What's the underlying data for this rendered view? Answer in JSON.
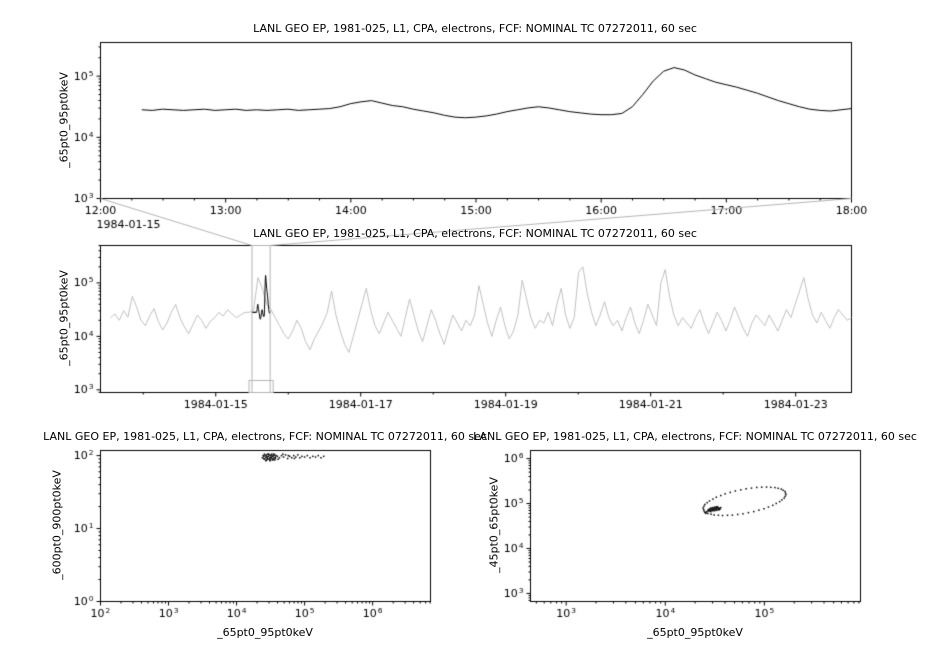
{
  "page": {
    "background": "#ffffff",
    "text_color": "#000000"
  },
  "chart_data": [
    {
      "id": "flux-timeseries-zoom",
      "type": "line",
      "title": "LANL GEO EP, 1981-025, L1, CPA, electrons, FCF: NOMINAL TC 07272011, 60 sec",
      "ylabel": "_65pt0_95pt0keV",
      "x_offset_label": "1984-01-15",
      "x_tick_values": [
        12,
        13,
        14,
        15,
        16,
        17,
        18
      ],
      "x_tick_labels": [
        "12:00",
        "13:00",
        "14:00",
        "15:00",
        "16:00",
        "17:00",
        "18:00"
      ],
      "x_minor_step": 0.25,
      "y_tick_exponents": [
        3,
        4,
        5
      ],
      "xlim": [
        12,
        18
      ],
      "ylim": [
        3.0,
        5.55
      ],
      "line_color": "#000000",
      "series": {
        "x_start": 12.33,
        "x_end": 18.0,
        "y_log": [
          4.45,
          4.44,
          4.46,
          4.45,
          4.44,
          4.45,
          4.46,
          4.44,
          4.45,
          4.46,
          4.44,
          4.45,
          4.44,
          4.45,
          4.46,
          4.44,
          4.45,
          4.46,
          4.47,
          4.5,
          4.55,
          4.58,
          4.6,
          4.56,
          4.52,
          4.5,
          4.46,
          4.43,
          4.4,
          4.36,
          4.33,
          4.32,
          4.33,
          4.35,
          4.38,
          4.42,
          4.45,
          4.48,
          4.5,
          4.48,
          4.45,
          4.42,
          4.4,
          4.38,
          4.37,
          4.37,
          4.39,
          4.5,
          4.7,
          4.92,
          5.08,
          5.14,
          5.1,
          5.02,
          4.96,
          4.9,
          4.86,
          4.82,
          4.77,
          4.72,
          4.66,
          4.6,
          4.55,
          4.5,
          4.46,
          4.44,
          4.43,
          4.45,
          4.47
        ]
      }
    },
    {
      "id": "flux-timeseries-context",
      "type": "line",
      "title": "LANL GEO EP, 1981-025, L1, CPA, electrons, FCF: NOMINAL TC 07272011, 60 sec",
      "ylabel": "_65pt0_95pt0keV",
      "x_tick_values": [
        15,
        17,
        19,
        21,
        23
      ],
      "x_tick_labels": [
        "1984-01-15",
        "1984-01-17",
        "1984-01-19",
        "1984-01-21",
        "1984-01-23"
      ],
      "x_minor_values": [
        14,
        16,
        18,
        20,
        22
      ],
      "y_tick_exponents": [
        3,
        4,
        5
      ],
      "xlim": [
        13.41,
        23.77
      ],
      "ylim": [
        2.95,
        5.7
      ],
      "line_color": "#c0c0c0",
      "highlight": {
        "x_range": [
          15.5,
          15.75
        ],
        "line_color": "#000000",
        "box_color": "#b4b4b4",
        "overlay_series_ref": 0
      },
      "series": {
        "x_start": 13.55,
        "x_end": 23.77,
        "y_log": [
          4.35,
          4.42,
          4.3,
          4.48,
          4.36,
          4.75,
          4.55,
          4.3,
          4.2,
          4.38,
          4.52,
          4.28,
          4.12,
          4.25,
          4.45,
          4.6,
          4.35,
          4.18,
          4.05,
          4.22,
          4.4,
          4.3,
          4.15,
          4.28,
          4.35,
          4.45,
          4.38,
          4.5,
          4.42,
          4.35,
          4.4,
          4.45,
          4.45,
          4.5,
          5.1,
          4.9,
          4.6,
          4.5,
          4.35,
          4.2,
          4.05,
          3.95,
          4.1,
          4.3,
          4.15,
          3.9,
          3.75,
          3.95,
          4.1,
          4.25,
          4.45,
          4.85,
          4.4,
          4.1,
          3.85,
          3.7,
          4.0,
          4.3,
          4.6,
          4.9,
          4.5,
          4.2,
          4.05,
          4.25,
          4.45,
          4.3,
          4.15,
          4.0,
          4.35,
          4.7,
          4.4,
          4.1,
          3.9,
          4.2,
          4.5,
          4.3,
          4.05,
          3.85,
          4.15,
          4.4,
          4.25,
          4.1,
          4.3,
          4.2,
          4.4,
          4.95,
          4.6,
          4.25,
          4.0,
          4.3,
          4.55,
          4.2,
          3.95,
          4.1,
          4.4,
          5.05,
          4.7,
          4.35,
          4.15,
          4.3,
          4.25,
          4.45,
          4.2,
          4.6,
          4.9,
          4.4,
          4.15,
          4.35,
          5.2,
          5.3,
          4.8,
          4.45,
          4.2,
          4.4,
          4.65,
          4.35,
          4.2,
          4.3,
          4.1,
          4.35,
          4.55,
          4.25,
          4.05,
          4.3,
          4.6,
          4.4,
          4.2,
          5.0,
          5.25,
          4.75,
          4.4,
          4.2,
          4.35,
          4.25,
          4.15,
          4.35,
          4.5,
          4.25,
          4.05,
          4.25,
          4.45,
          4.3,
          4.1,
          4.3,
          4.55,
          4.35,
          4.15,
          4.0,
          4.25,
          4.4,
          4.3,
          4.2,
          4.4,
          4.25,
          4.1,
          4.3,
          4.5,
          4.35,
          4.6,
          4.85,
          5.1,
          4.7,
          4.4,
          4.25,
          4.45,
          4.3,
          4.15,
          4.35,
          4.5,
          4.4,
          4.3,
          4.35
        ]
      }
    },
    {
      "id": "scatter-600-900-vs-65-95",
      "type": "scatter",
      "title": "LANL GEO EP, 1981-025, L1, CPA, electrons, FCF: NOMINAL TC 07272011, 60 sec",
      "xlabel": "_65pt0_95pt0keV",
      "ylabel": "_600pt0_900pt0keV",
      "x_tick_exponents": [
        2,
        3,
        4,
        5,
        6
      ],
      "y_tick_exponents": [
        0,
        1,
        2
      ],
      "xlim": [
        2.0,
        6.85
      ],
      "ylim": [
        0.0,
        2.07
      ],
      "marker_color": "#000000",
      "points": {
        "x_log": [
          4.38,
          4.4,
          4.41,
          4.42,
          4.43,
          4.44,
          4.44,
          4.45,
          4.46,
          4.46,
          4.47,
          4.48,
          4.48,
          4.49,
          4.5,
          4.5,
          4.51,
          4.52,
          4.52,
          4.53,
          4.54,
          4.54,
          4.55,
          4.56,
          4.56,
          4.57,
          4.58,
          4.39,
          4.41,
          4.43,
          4.45,
          4.47,
          4.49,
          4.51,
          4.53,
          4.55,
          4.57,
          4.4,
          4.44,
          4.5,
          4.6,
          4.63,
          4.66,
          4.69,
          4.72,
          4.75,
          4.78,
          4.81,
          4.84,
          4.87,
          4.9,
          4.93,
          4.96,
          5.0,
          5.04,
          5.08,
          5.12,
          5.16,
          5.2,
          5.24,
          5.28,
          4.61,
          4.68,
          4.76,
          4.85
        ],
        "y_log": [
          1.97,
          1.99,
          1.95,
          2.0,
          1.97,
          2.01,
          1.94,
          1.98,
          2.02,
          1.96,
          1.99,
          1.95,
          2.01,
          1.97,
          2.0,
          1.94,
          1.98,
          2.02,
          1.96,
          1.99,
          1.95,
          2.0,
          1.97,
          2.01,
          1.94,
          1.98,
          2.0,
          2.0,
          2.02,
          1.93,
          1.95,
          2.02,
          1.93,
          2.01,
          1.94,
          2.02,
          1.96,
          1.96,
          1.99,
          1.97,
          1.99,
          1.97,
          2.0,
          1.98,
          2.01,
          1.96,
          1.99,
          1.97,
          2.0,
          1.98,
          2.01,
          1.97,
          1.99,
          1.98,
          2.0,
          1.97,
          1.99,
          1.98,
          2.0,
          1.97,
          1.99,
          1.95,
          2.02,
          2.0,
          1.96
        ]
      }
    },
    {
      "id": "scatter-45-65-vs-65-95",
      "type": "scatter",
      "title": "LANL GEO EP, 1981-025, L1, CPA, electrons, FCF: NOMINAL TC 07272011, 60 sec",
      "xlabel": "_65pt0_95pt0keV",
      "ylabel": "_45pt0_65pt0keV",
      "x_tick_exponents": [
        3,
        4,
        5
      ],
      "y_tick_exponents": [
        3,
        4,
        5,
        6
      ],
      "xlim": [
        2.64,
        5.97
      ],
      "ylim": [
        2.82,
        6.18
      ],
      "marker_color": "#000000",
      "points": {
        "x_log": [
          5.208,
          5.17,
          5.107,
          5.022,
          4.923,
          4.816,
          4.707,
          4.604,
          4.515,
          4.446,
          4.4,
          4.382,
          4.392,
          4.43,
          4.493,
          4.578,
          4.677,
          4.784,
          4.893,
          4.996,
          5.085,
          5.154,
          5.2,
          5.218,
          5.189,
          5.139,
          5.065,
          4.973,
          4.87,
          4.762,
          4.656,
          4.56,
          4.481,
          4.423,
          4.391,
          4.387,
          4.411,
          4.462,
          4.536,
          4.628,
          4.731,
          4.839,
          4.945,
          5.041,
          5.12,
          5.177,
          5.209,
          5.213,
          4.43,
          4.44,
          4.45,
          4.45,
          4.46,
          4.46,
          4.47,
          4.47,
          4.48,
          4.48,
          4.49,
          4.49,
          4.5,
          4.5,
          4.51,
          4.51,
          4.52,
          4.52,
          4.53,
          4.53,
          4.54,
          4.54,
          4.55,
          4.44,
          4.46,
          4.48,
          4.5,
          4.52,
          4.55,
          4.56,
          4.4,
          4.42,
          4.41
        ],
        "y_log": [
          5.269,
          5.321,
          5.355,
          5.367,
          5.358,
          5.328,
          5.279,
          5.216,
          5.14,
          5.057,
          4.98,
          4.903,
          4.832,
          4.779,
          4.745,
          4.733,
          4.742,
          4.772,
          4.821,
          4.884,
          4.96,
          5.043,
          5.12,
          5.197,
          5.295,
          5.338,
          5.361,
          5.363,
          5.343,
          5.304,
          5.248,
          5.178,
          5.099,
          5.019,
          4.942,
          4.868,
          4.806,
          4.762,
          4.739,
          4.738,
          4.757,
          4.797,
          4.853,
          4.922,
          5.002,
          5.082,
          5.159,
          5.233,
          4.85,
          4.87,
          4.84,
          4.88,
          4.86,
          4.9,
          4.85,
          4.89,
          4.87,
          4.91,
          4.86,
          4.9,
          4.88,
          4.84,
          4.87,
          4.91,
          4.89,
          4.85,
          4.88,
          4.92,
          4.86,
          4.9,
          4.89,
          4.83,
          4.82,
          4.84,
          4.92,
          4.93,
          4.87,
          4.91,
          4.8,
          4.82,
          4.78
        ]
      }
    }
  ]
}
